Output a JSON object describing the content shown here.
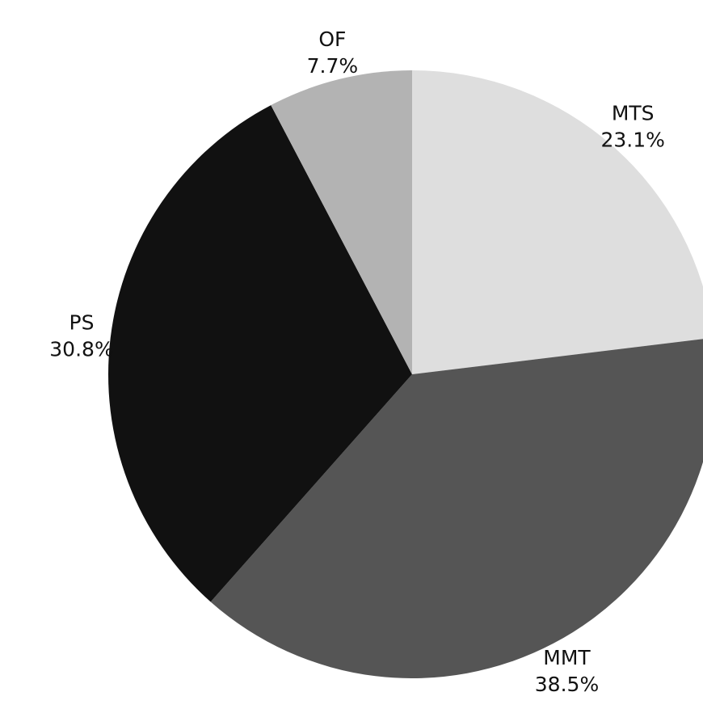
{
  "chart_data": {
    "type": "pie",
    "title": "",
    "slices": [
      {
        "label": "MTS",
        "percent_label": "23.1%",
        "value": 23.1,
        "color": "#dedede"
      },
      {
        "label": "MMT",
        "percent_label": "38.5%",
        "value": 38.5,
        "color": "#555555"
      },
      {
        "label": "PS",
        "percent_label": "30.8%",
        "value": 30.8,
        "color": "#111111"
      },
      {
        "label": "OF",
        "percent_label": "7.7%",
        "value": 7.7,
        "color": "#b3b3b3"
      }
    ],
    "start_angle": "12 o'clock",
    "direction": "clockwise",
    "legend": "none"
  }
}
